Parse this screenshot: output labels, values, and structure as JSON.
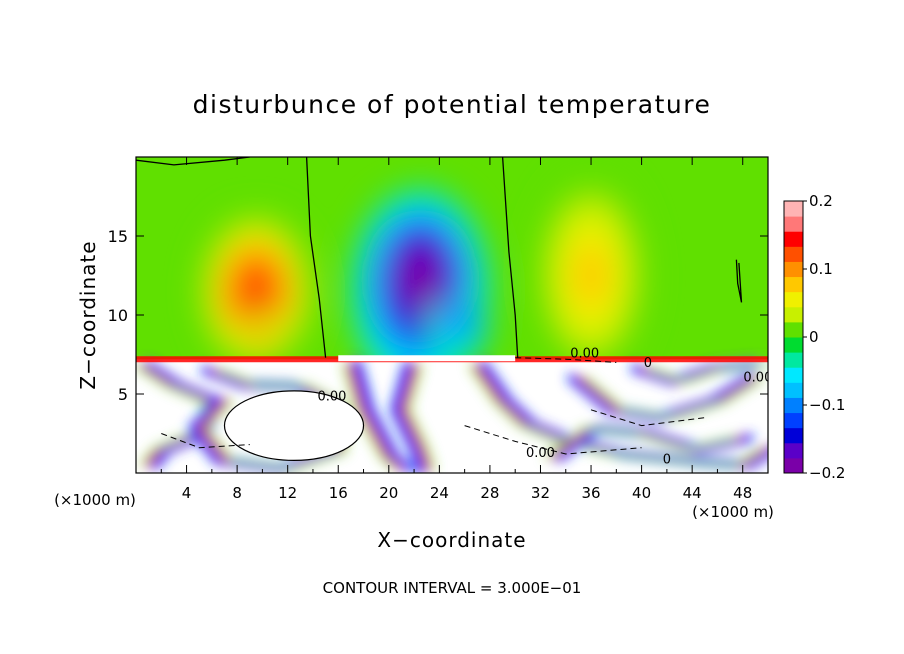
{
  "chart_data": {
    "type": "heatmap",
    "title": "disturbunce of potential temperature",
    "xlabel": "X−coordinate",
    "ylabel": "Z−coordinate",
    "x_unit": "(×1000 m)",
    "y_unit": "(×1000 m)",
    "x_ticks": [
      4,
      8,
      12,
      16,
      20,
      24,
      28,
      32,
      36,
      40,
      44,
      48
    ],
    "y_ticks": [
      5,
      10,
      15
    ],
    "xlim": [
      0,
      50
    ],
    "ylim": [
      0,
      20
    ],
    "footer": "CONTOUR INTERVAL = 3.000E−01",
    "colorbar": {
      "ticks": [
        0.2,
        0.1,
        0,
        -0.1,
        -0.2
      ],
      "tick_labels": [
        "0.2",
        "0.1",
        "0",
        "−0.1",
        "−0.2"
      ],
      "range": [
        -0.2,
        0.2
      ],
      "colors": [
        "#7a00a8",
        "#5a00c8",
        "#0000d8",
        "#0040ff",
        "#0080ff",
        "#00c0ff",
        "#00e8ff",
        "#00e8a0",
        "#00dc30",
        "#60e000",
        "#c8f000",
        "#f0f000",
        "#ffc800",
        "#ff9000",
        "#ff5000",
        "#ff0000",
        "#ff7878",
        "#ffb4b4"
      ]
    },
    "contour_labels": [
      {
        "text": "0.00",
        "x": 35.5,
        "z": 7.3
      },
      {
        "text": "0.00",
        "x": 15.5,
        "z": 4.6
      },
      {
        "text": "0.00",
        "x": 49.2,
        "z": 5.8
      },
      {
        "text": "0.00",
        "x": 32.0,
        "z": 1.0
      },
      {
        "text": "0",
        "x": 42.0,
        "z": 0.6
      },
      {
        "text": "0",
        "x": 40.5,
        "z": 6.7
      }
    ],
    "features": [
      {
        "kind": "warm",
        "x": 9.5,
        "z": 11.5,
        "sx": 4.5,
        "sz": 5.0,
        "value": 0.13
      },
      {
        "kind": "warm",
        "x": 10.0,
        "z": 8.6,
        "sx": 1.6,
        "sz": 1.6,
        "value": 0.1
      },
      {
        "kind": "cold",
        "x": 22.5,
        "z": 11.5,
        "sx": 5.5,
        "sz": 6.5,
        "value": -0.2
      },
      {
        "kind": "cold",
        "x": 25.5,
        "z": 9.0,
        "sx": 2.5,
        "sz": 2.0,
        "value": -0.12
      },
      {
        "kind": "warm",
        "x": 36.0,
        "z": 12.5,
        "sx": 4.5,
        "sz": 6.5,
        "value": 0.07
      }
    ]
  }
}
